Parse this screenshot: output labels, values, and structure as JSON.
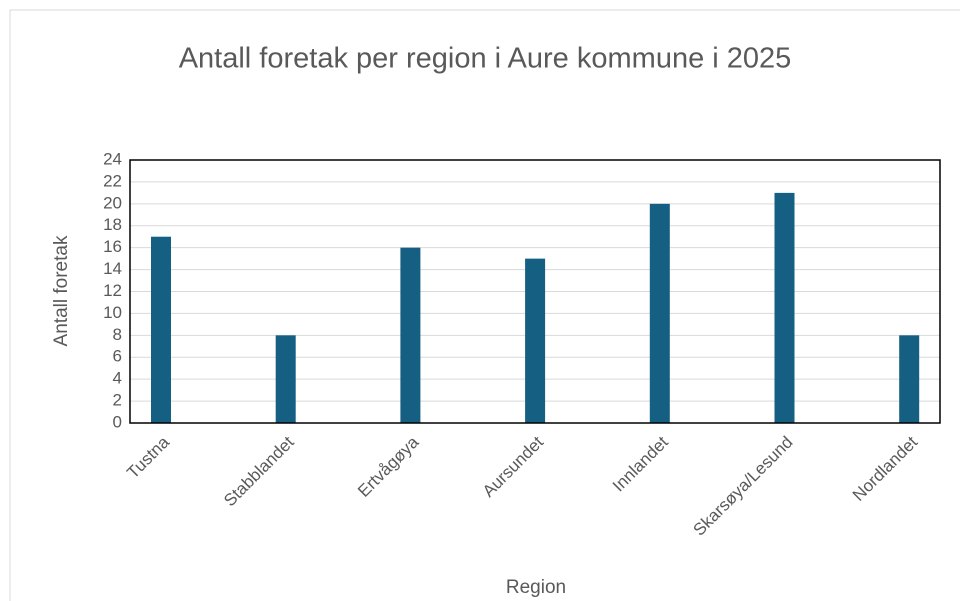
{
  "chart_data": {
    "type": "bar",
    "title": "Antall foretak per region i Aure kommune i 2025",
    "x_label": "Region",
    "y_label": "Antall foretak",
    "categories": [
      "Tustna",
      "Stabblandet",
      "Ertvågøya",
      "Aursundet",
      "Innlandet",
      "Skarsøya/Lesund",
      "Nordlandet"
    ],
    "values": [
      17,
      8,
      16,
      15,
      20,
      21,
      8
    ],
    "color": "#145f82",
    "ylim": [
      0,
      24
    ],
    "yticks": [
      0,
      2,
      4,
      6,
      8,
      10,
      12,
      14,
      16,
      18,
      20,
      22,
      24
    ],
    "grid": true
  }
}
